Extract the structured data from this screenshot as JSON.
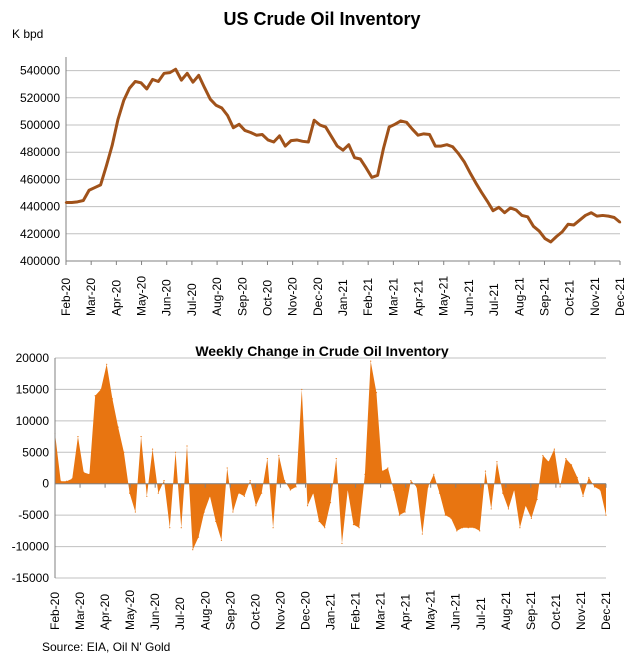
{
  "source": "Source: EIA, Oil N' Gold",
  "colors": {
    "line": "#A0521A",
    "area": "#E87511",
    "grid": "#C0C0C0",
    "axis": "#808080"
  },
  "chart_data": [
    {
      "type": "line",
      "title": "US Crude Oil Inventory",
      "ylabel": "K bpd",
      "ylim": [
        400000,
        550000
      ],
      "yticks": [
        400000,
        420000,
        440000,
        460000,
        480000,
        500000,
        520000,
        540000
      ],
      "ytick_labels": [
        "400000",
        "420000",
        "440000",
        "460000",
        "480000",
        "500000",
        "520000",
        "540000"
      ],
      "grid": true,
      "month_labels": [
        "Feb-20",
        "Mar-20",
        "Apr-20",
        "May-20",
        "Jun-20",
        "Jul-20",
        "Aug-20",
        "Sep-20",
        "Oct-20",
        "Nov-20",
        "Dec-20",
        "Jan-21",
        "Feb-21",
        "Mar-21",
        "Apr-21",
        "May-21",
        "Jun-21",
        "Jul-21",
        "Aug-21",
        "Sep-21",
        "Oct-21",
        "Nov-21",
        "Dec-21"
      ],
      "values": [
        443000,
        443000,
        443500,
        444500,
        452000,
        454000,
        456000,
        470000,
        485000,
        504000,
        518000,
        527000,
        532000,
        531000,
        526500,
        533500,
        532000,
        538000,
        538500,
        541000,
        533000,
        538000,
        531500,
        536500,
        527500,
        519000,
        514500,
        512500,
        507000,
        498000,
        500500,
        496000,
        494500,
        492500,
        493000,
        489000,
        487500,
        492000,
        484500,
        488500,
        489000,
        488000,
        487500,
        503500,
        500000,
        498500,
        491500,
        484500,
        481500,
        485500,
        476000,
        475000,
        468500,
        461500,
        463000,
        482500,
        498500,
        500500,
        503000,
        502000,
        497000,
        492500,
        493500,
        493000,
        484500,
        484500,
        485500,
        484000,
        479000,
        473000,
        465000,
        457500,
        450500,
        444000,
        437000,
        439500,
        435500,
        439000,
        437500,
        433500,
        432500,
        425500,
        422000,
        416500,
        414000,
        418000,
        421500,
        427000,
        426500,
        430000,
        433500,
        435500,
        433000,
        433500,
        433000,
        432000,
        428500
      ]
    },
    {
      "type": "area",
      "title": "Weekly Change in Crude Oil Inventory",
      "ylim": [
        -15000,
        20000
      ],
      "yticks": [
        -15000,
        -10000,
        -5000,
        0,
        5000,
        10000,
        15000,
        20000
      ],
      "ytick_labels": [
        "-15000",
        "-10000",
        "-5000",
        "0",
        "5000",
        "10000",
        "15000",
        "20000"
      ],
      "grid": true,
      "month_labels": [
        "Feb-20",
        "Mar-20",
        "Apr-20",
        "May-20",
        "Jun-20",
        "Jul-20",
        "Aug-20",
        "Sep-20",
        "Oct-20",
        "Nov-20",
        "Dec-20",
        "Jan-21",
        "Feb-21",
        "Mar-21",
        "Apr-21",
        "May-21",
        "Jun-21",
        "Jul-21",
        "Aug-21",
        "Sep-21",
        "Oct-21",
        "Nov-21",
        "Dec-21"
      ],
      "values": [
        8000,
        400,
        400,
        800,
        7500,
        1800,
        1500,
        14000,
        15000,
        19000,
        13500,
        9000,
        5000,
        -1500,
        -4500,
        7500,
        -2000,
        5500,
        -1500,
        500,
        -7000,
        5000,
        -7000,
        6000,
        -10500,
        -8500,
        -4500,
        -2000,
        -6000,
        -9000,
        2500,
        -4500,
        -1500,
        -2000,
        500,
        -3500,
        -1500,
        4000,
        -7000,
        4500,
        500,
        -1000,
        -500,
        15000,
        -3500,
        -1500,
        -6000,
        -7000,
        -3000,
        4000,
        -9500,
        -1000,
        -6500,
        -7000,
        1500,
        19500,
        14500,
        2000,
        2500,
        -1000,
        -5000,
        -4500,
        500,
        -500,
        -8000,
        -500,
        1500,
        -1500,
        -5000,
        -5500,
        -7500,
        -7000,
        -7000,
        -7000,
        -7500,
        2000,
        -4000,
        3500,
        -1500,
        -4000,
        -1000,
        -7000,
        -3500,
        -5500,
        -2500,
        4500,
        3500,
        5500,
        -500,
        4000,
        3000,
        1000,
        -2000,
        1000,
        -500,
        -1000,
        -5000
      ]
    }
  ]
}
